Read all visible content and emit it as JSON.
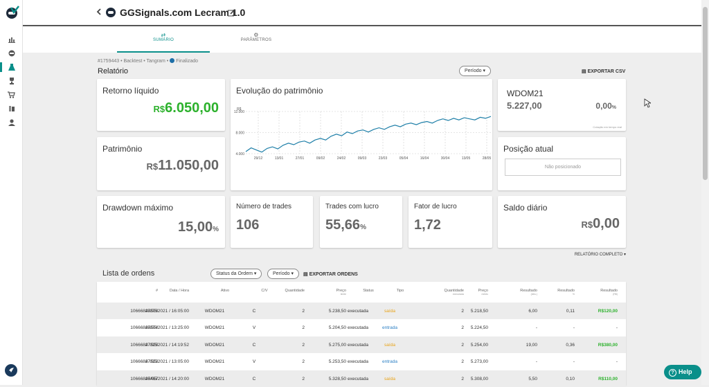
{
  "app": {
    "title": "GGSignals.com Lecram 1.0"
  },
  "tabs": [
    {
      "label": "SUMÁRIO",
      "icon": "swap-arrows-icon",
      "active": true
    },
    {
      "label": "PARÂMETROS",
      "icon": "gears-icon",
      "active": false
    }
  ],
  "breadcrumb": {
    "text": "#1759443 • Backtest • Tangram •",
    "status": "Finalizado"
  },
  "report": {
    "title": "Relatório",
    "period_label": "Período",
    "export_csv": "EXPORTAR CSV",
    "full_report": "RELATÓRIO COMPLETO"
  },
  "cards": {
    "retorno": {
      "title": "Retorno líquido",
      "currency": "R$",
      "value": "6.050,00"
    },
    "patrimonio": {
      "title": "Patrimônio",
      "currency": "R$",
      "value": "11.050,00"
    },
    "evolucao": {
      "title": "Evolução do patrimônio"
    },
    "wdom": {
      "title": "WDOM21",
      "price": "5.227,00",
      "change": "0,00",
      "change_suffix": "%",
      "note": "Cotação em tempo real"
    },
    "posicao": {
      "title": "Posição atual",
      "placeholder": "Não posicionado"
    },
    "drawdown": {
      "title": "Drawdown máximo",
      "value": "15,00",
      "suffix": "%"
    },
    "num_trades": {
      "title": "Número de trades",
      "value": "106"
    },
    "trades_lucro": {
      "title": "Trades com lucro",
      "value": "55,66",
      "suffix": "%"
    },
    "fator_lucro": {
      "title": "Fator de lucro",
      "value": "1,72"
    },
    "saldo": {
      "title": "Saldo diário",
      "currency": "R$",
      "value": "0,00"
    }
  },
  "chart_data": {
    "type": "line",
    "title": "Evolução do patrimônio",
    "ylabel": "R$",
    "ylim": [
      4000,
      12000
    ],
    "yticks": [
      "4.000",
      "8.000",
      "12.000"
    ],
    "xticks": [
      "29/12",
      "13/01",
      "27/01",
      "09/02",
      "24/02",
      "09/03",
      "23/03",
      "05/04",
      "16/04",
      "30/04",
      "13/05",
      "28/05"
    ],
    "grid": true,
    "series": [
      {
        "values": [
          4400,
          5100,
          4700,
          4300,
          5000,
          5300,
          4900,
          5600,
          6000,
          5700,
          6200,
          6400,
          6000,
          6600,
          6900,
          6600,
          7300,
          7700,
          7400,
          8100,
          7800,
          8300,
          8500,
          8100,
          8600,
          8900,
          8600,
          9100,
          9400,
          9100,
          9600,
          9800,
          9500,
          9900,
          10100,
          9800,
          10300,
          10600,
          10300,
          10700,
          10400,
          10800,
          10600,
          10400,
          10900,
          10700,
          11050
        ],
        "color": "#1e7fa8"
      }
    ]
  },
  "orders": {
    "title": "Lista de ordens",
    "status_filter": "Status da Ordem",
    "period_label": "Período",
    "export_label": "EXPORTAR ORDENS",
    "columns": [
      {
        "label": "#",
        "sub": ""
      },
      {
        "label": "Data / Hora",
        "sub": ""
      },
      {
        "label": "Ativo",
        "sub": ""
      },
      {
        "label": "C/V",
        "sub": ""
      },
      {
        "label": "Quantidade",
        "sub": ""
      },
      {
        "label": "Preço",
        "sub": "limite"
      },
      {
        "label": "Status",
        "sub": ""
      },
      {
        "label": "Tipo",
        "sub": ""
      },
      {
        "label": "Quantidade",
        "sub": "executada"
      },
      {
        "label": "Preço",
        "sub": "médio"
      },
      {
        "label": "Resultado",
        "sub": "(Abs.)"
      },
      {
        "label": "Resultado",
        "sub": "%"
      },
      {
        "label": "Resultado",
        "sub": "(R$)"
      }
    ],
    "rows": [
      [
        "10666847576",
        "28/05/2021 / 16:05:00",
        "WDOM21",
        "C",
        "2",
        "5.238,50",
        "executada",
        "saída",
        "2",
        "5.218,50",
        "6,00",
        "0,11",
        "R$120,00"
      ],
      [
        "10666847574",
        "28/05/2021 / 13:25:00",
        "WDOM21",
        "V",
        "2",
        "5.204,50",
        "executada",
        "entrada",
        "2",
        "5.224,50",
        "-",
        "-",
        "-"
      ],
      [
        "10666847525",
        "27/05/2021 / 14:19:52",
        "WDOM21",
        "C",
        "2",
        "5.275,00",
        "executada",
        "saída",
        "2",
        "5.254,00",
        "19,00",
        "0,36",
        "R$380,00"
      ],
      [
        "10666847523",
        "27/05/2021 / 13:05:00",
        "WDOM21",
        "V",
        "2",
        "5.253,50",
        "executada",
        "entrada",
        "2",
        "5.273,00",
        "-",
        "-",
        "-"
      ],
      [
        "10666847467",
        "26/05/2021 / 14:20:00",
        "WDOM21",
        "C",
        "2",
        "5.328,50",
        "executada",
        "saída",
        "2",
        "5.308,00",
        "5,50",
        "0,10",
        "R$110,00"
      ]
    ]
  },
  "help": {
    "label": "Help"
  },
  "colors": {
    "accent": "#0a8f8a",
    "profit": "#2cb12c",
    "exit": "#e8a317",
    "entry": "#2a7fc4"
  }
}
